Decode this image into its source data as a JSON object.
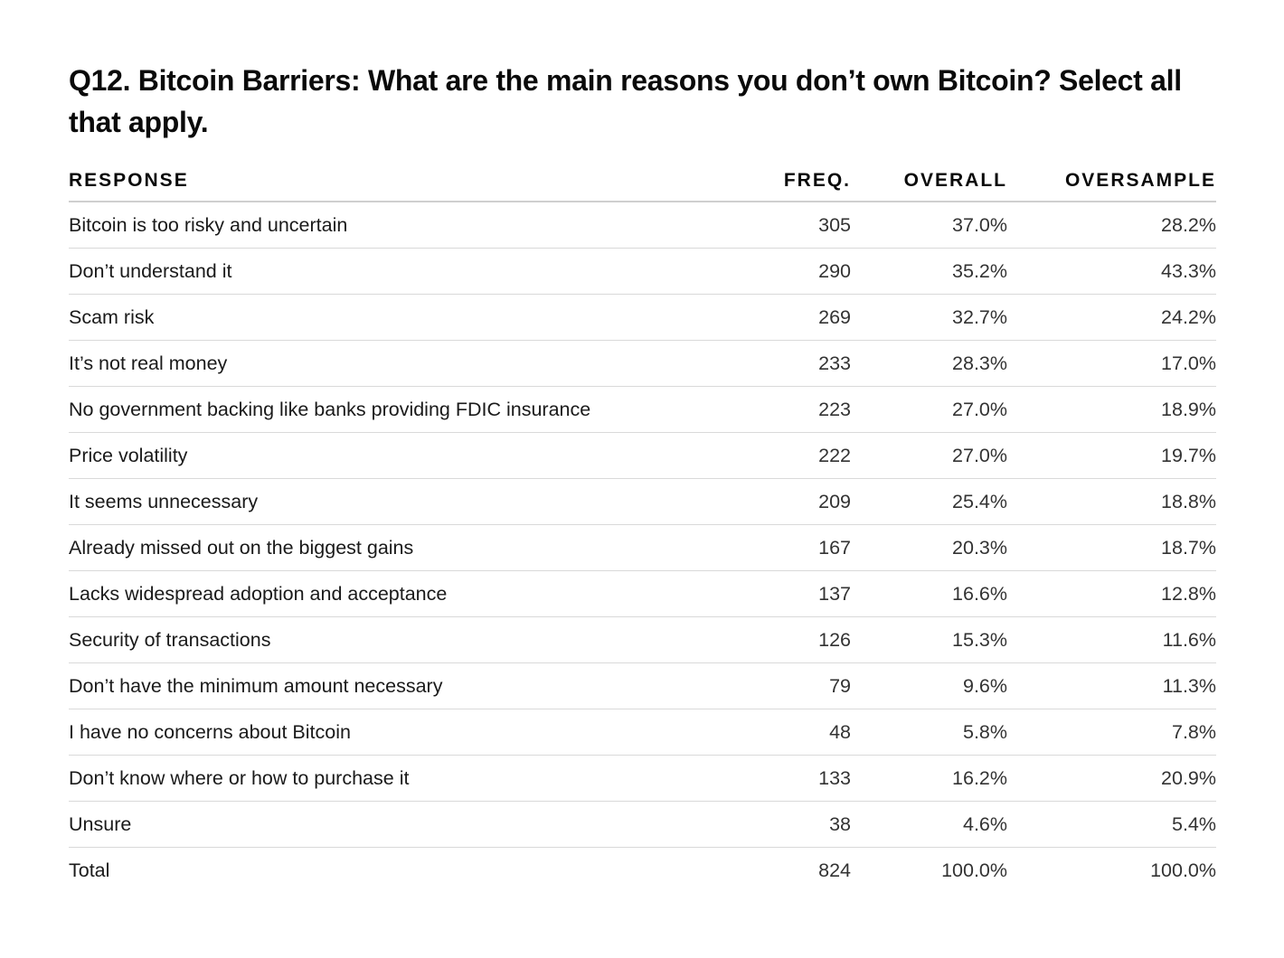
{
  "title": {
    "lead": "Q12. Bitcoin Barriers:",
    "question": " What are the main reasons you don’t own Bitcoin? Select all that apply."
  },
  "table": {
    "headers": {
      "response": "RESPONSE",
      "freq": "FREQ.",
      "overall": "OVERALL",
      "oversample": "OVERSAMPLE"
    },
    "rows": [
      {
        "response": "Bitcoin is too risky and uncertain",
        "freq": "305",
        "overall": "37.0%",
        "oversample": "28.2%"
      },
      {
        "response": "Don’t understand it",
        "freq": "290",
        "overall": "35.2%",
        "oversample": "43.3%"
      },
      {
        "response": "Scam risk",
        "freq": "269",
        "overall": "32.7%",
        "oversample": "24.2%"
      },
      {
        "response": "It’s not real money",
        "freq": "233",
        "overall": "28.3%",
        "oversample": "17.0%"
      },
      {
        "response": "No government backing like banks providing FDIC insurance",
        "freq": "223",
        "overall": "27.0%",
        "oversample": "18.9%"
      },
      {
        "response": "Price volatility",
        "freq": "222",
        "overall": "27.0%",
        "oversample": "19.7%"
      },
      {
        "response": "It seems unnecessary",
        "freq": "209",
        "overall": "25.4%",
        "oversample": "18.8%"
      },
      {
        "response": "Already missed out on the biggest gains",
        "freq": "167",
        "overall": "20.3%",
        "oversample": "18.7%"
      },
      {
        "response": "Lacks widespread adoption and acceptance",
        "freq": "137",
        "overall": "16.6%",
        "oversample": "12.8%"
      },
      {
        "response": "Security of transactions",
        "freq": "126",
        "overall": "15.3%",
        "oversample": "11.6%"
      },
      {
        "response": "Don’t have the minimum amount necessary",
        "freq": "79",
        "overall": "9.6%",
        "oversample": "11.3%"
      },
      {
        "response": "I have no concerns about Bitcoin",
        "freq": "48",
        "overall": "5.8%",
        "oversample": "7.8%"
      },
      {
        "response": "Don’t know where or how to purchase it",
        "freq": "133",
        "overall": "16.2%",
        "oversample": "20.9%"
      },
      {
        "response": "Unsure",
        "freq": "38",
        "overall": "4.6%",
        "oversample": "5.4%"
      },
      {
        "response": "Total",
        "freq": "824",
        "overall": "100.0%",
        "oversample": "100.0%"
      }
    ]
  }
}
